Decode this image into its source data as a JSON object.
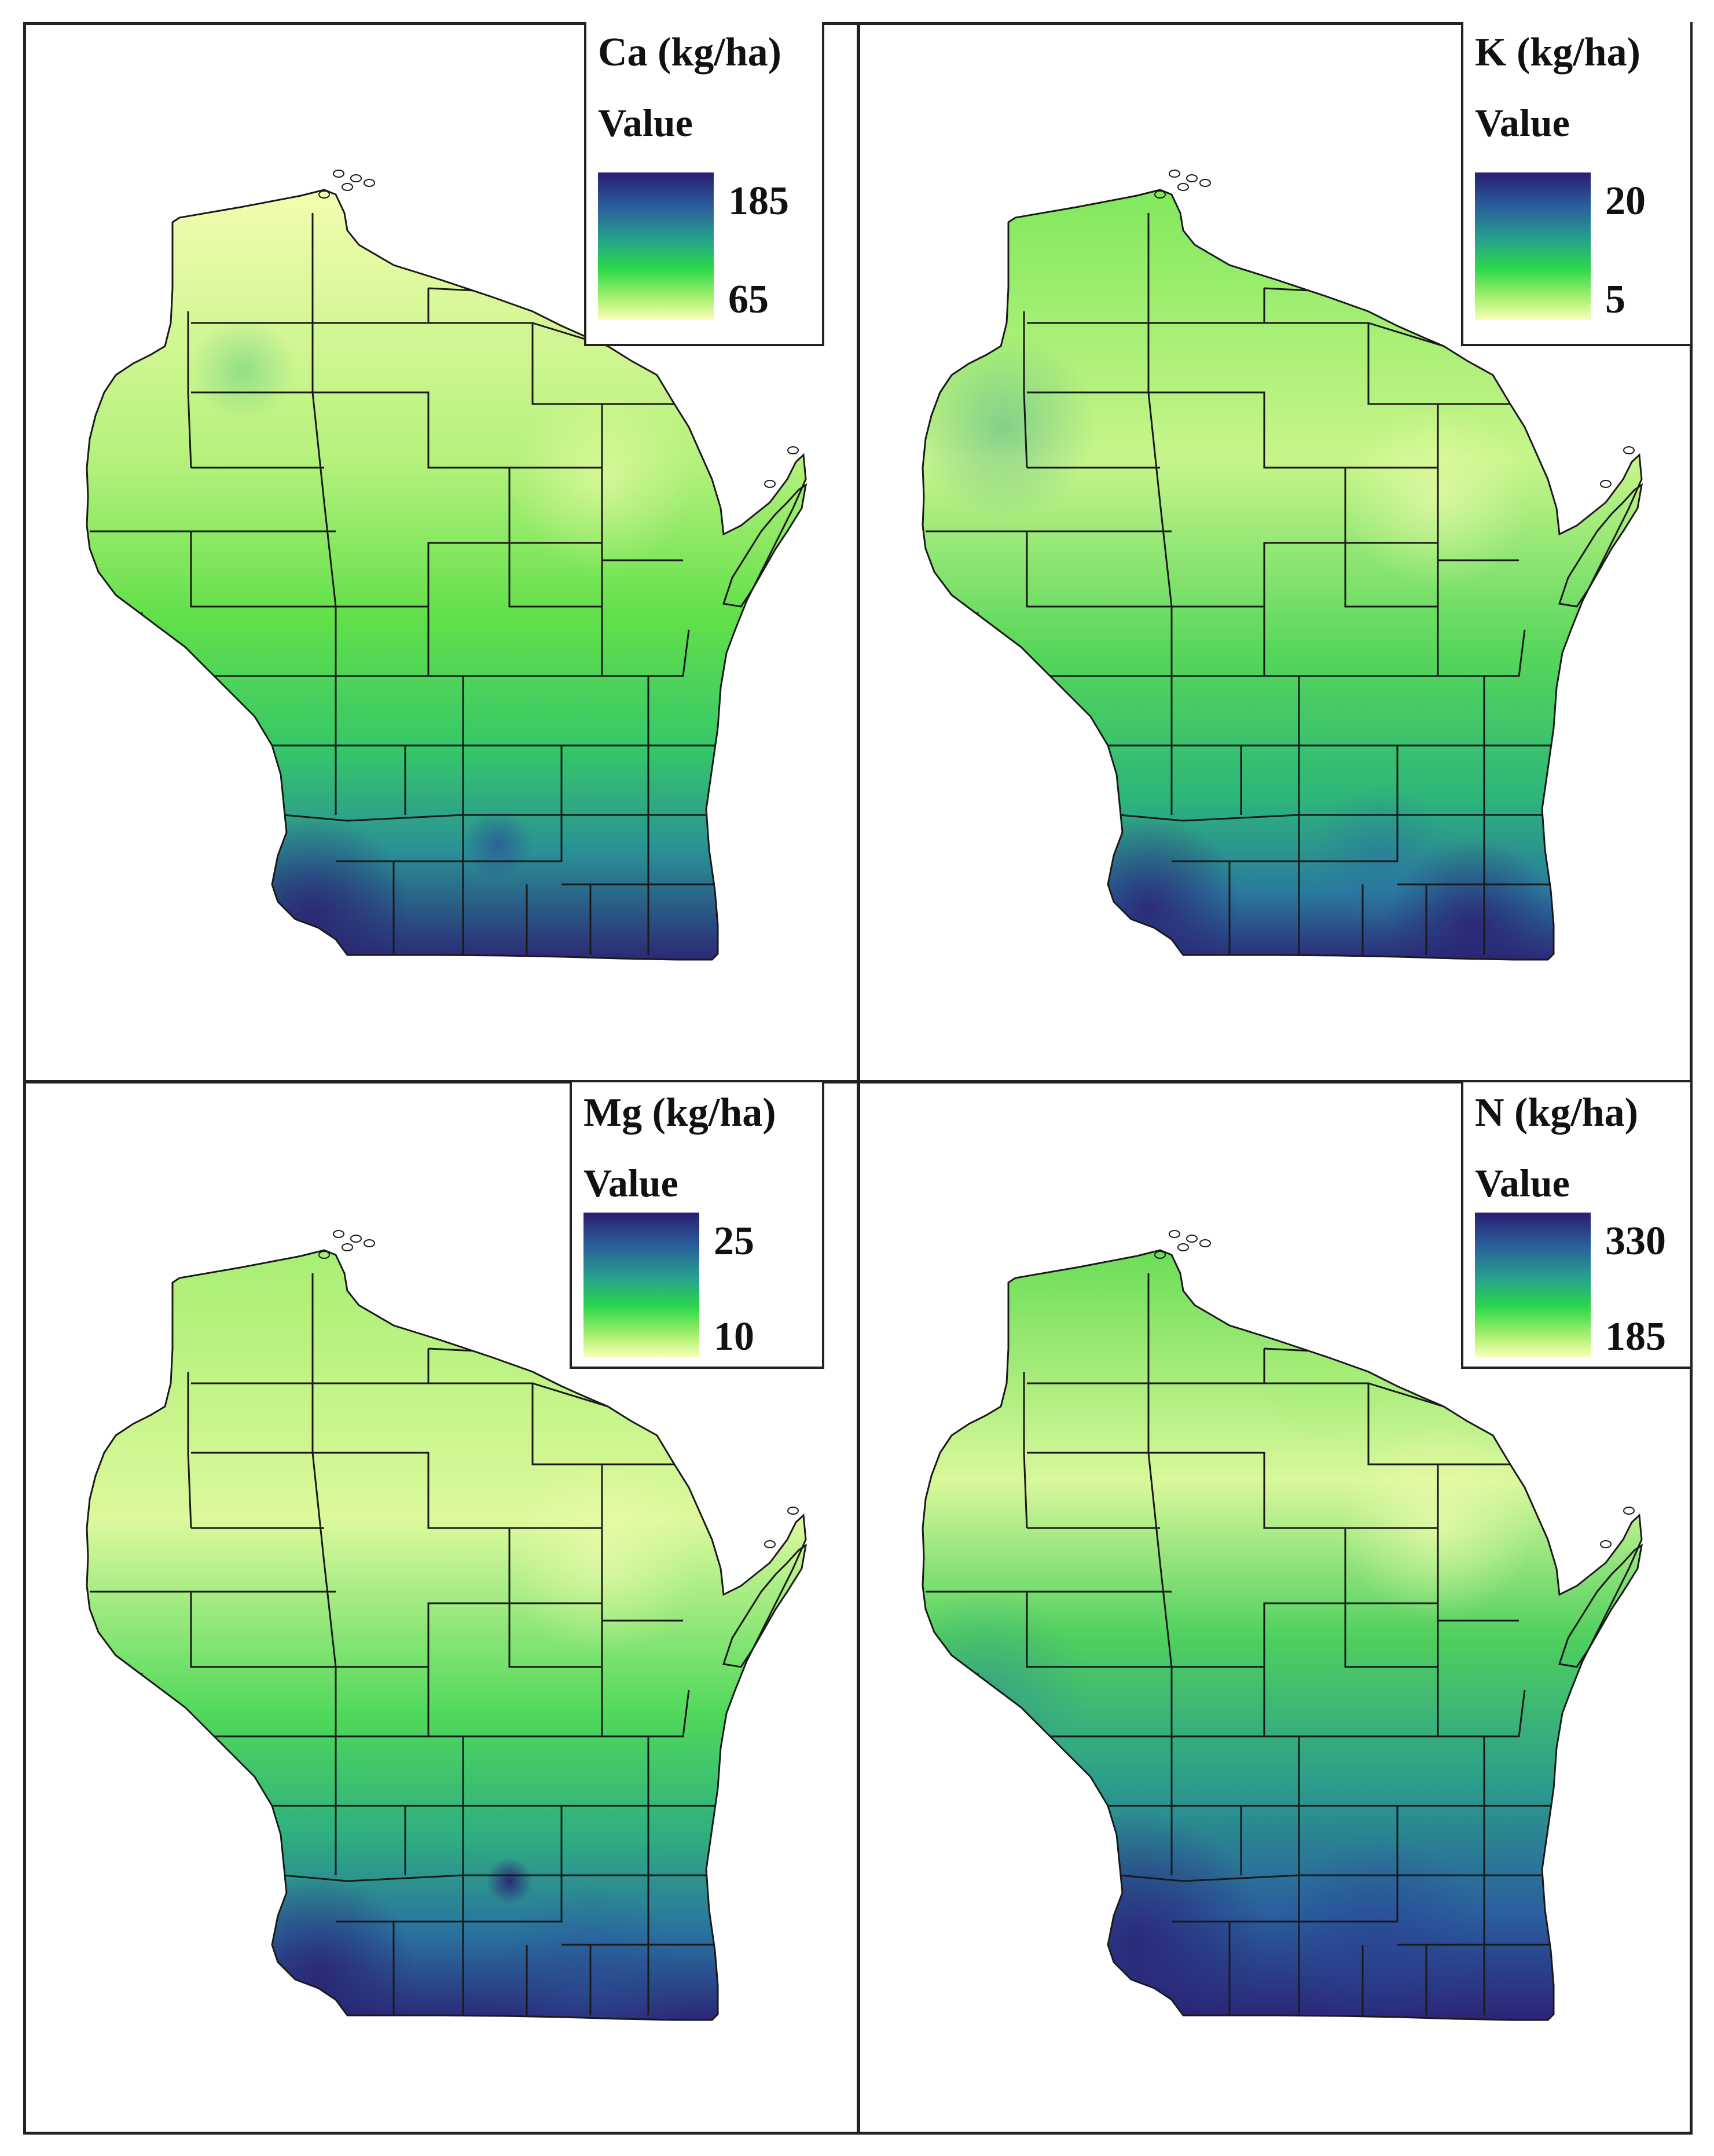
{
  "panels": [
    {
      "id": "ca",
      "title": "Ca (kg/ha)",
      "subtitle": "Value",
      "max": "185",
      "min": "65",
      "field_note": "south and southwest higher"
    },
    {
      "id": "k",
      "title": "K (kg/ha)",
      "subtitle": "Value",
      "max": "20",
      "min": "5",
      "field_note": "southwest and southeast higher"
    },
    {
      "id": "mg",
      "title": "Mg (kg/ha)",
      "subtitle": "Value",
      "max": "25",
      "min": "10",
      "field_note": "southwest and south higher"
    },
    {
      "id": "n",
      "title": "N (kg/ha)",
      "subtitle": "Value",
      "max": "330",
      "min": "185",
      "field_note": "west and south higher"
    }
  ],
  "colors": {
    "high": "#2b1e72",
    "mid_high": "#2a6a9e",
    "mid": "#2fb57a",
    "mid_low": "#35dc3c",
    "low": "#f4fdb0",
    "border": "#1a1a1a"
  }
}
